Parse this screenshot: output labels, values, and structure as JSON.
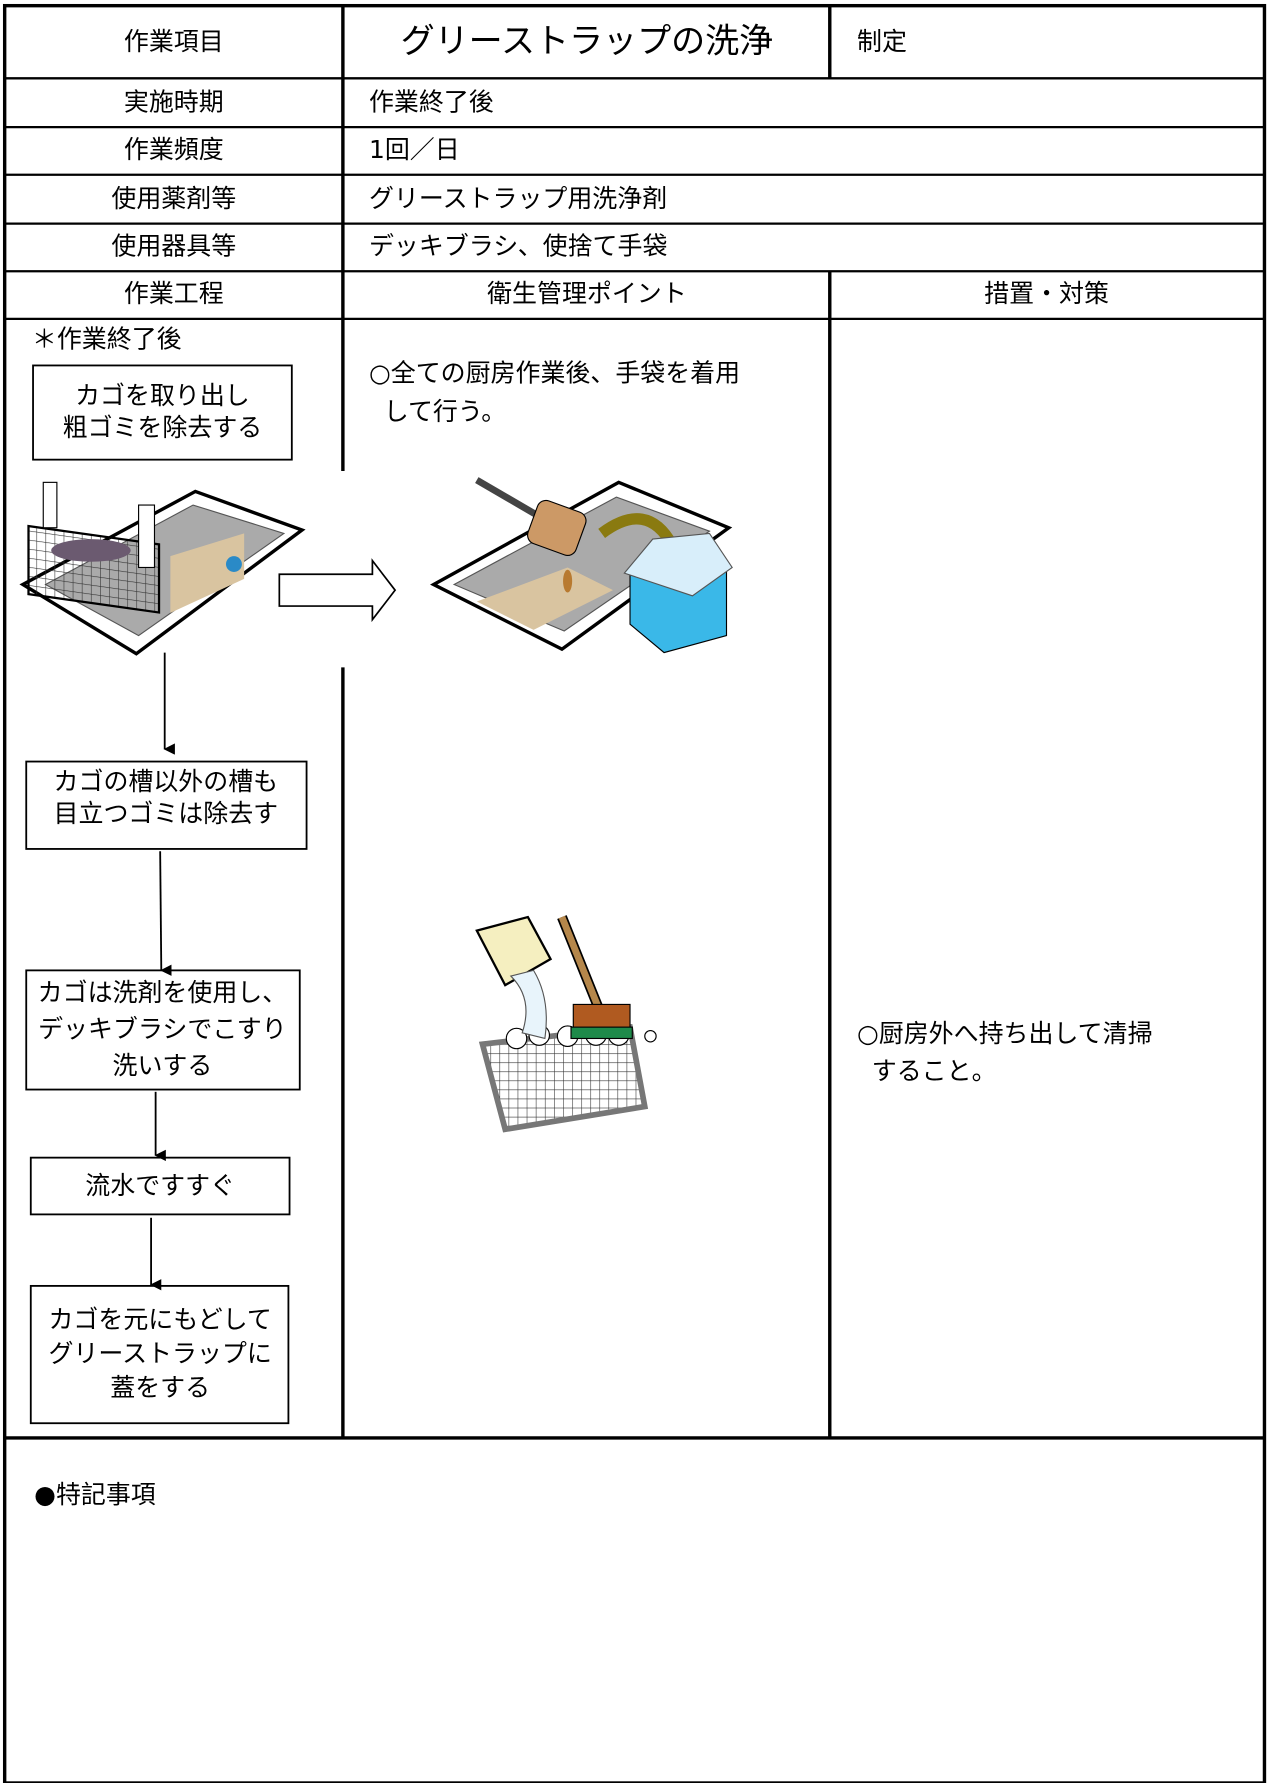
{
  "header": {
    "item_label": "作業項目",
    "title": "グリーストラップの洗浄",
    "established_label": "制定"
  },
  "info_rows": [
    {
      "label": "実施時期",
      "value": "作業終了後"
    },
    {
      "label": "作業頻度",
      "value": "1回／日"
    },
    {
      "label": "使用薬剤等",
      "value": "グリーストラップ用洗浄剤"
    },
    {
      "label": "使用器具等",
      "value": "デッキブラシ、使捨て手袋"
    }
  ],
  "columns": [
    "作業工程",
    "衛生管理ポイント",
    "措置・対策"
  ],
  "process": {
    "timing": "＊作業終了後",
    "steps": [
      [
        "カゴを取り出し",
        "粗ゴミを除去する"
      ],
      [
        "カゴの槽以外の槽も",
        "目立つゴミは除去す"
      ],
      [
        "カゴは洗剤を使用し、",
        "デッキブラシでこすり",
        "洗いする"
      ],
      [
        "流水ですすぐ"
      ],
      [
        "カゴを元にもどして",
        "グリーストラップに",
        "蓋をする"
      ]
    ]
  },
  "hygiene_point": [
    "○全ての厨房作業後、手袋を着用",
    "して行う。"
  ],
  "measures": [
    "○厨房外へ持ち出して清掃",
    "すること。"
  ],
  "notes_label": "●特記事項"
}
